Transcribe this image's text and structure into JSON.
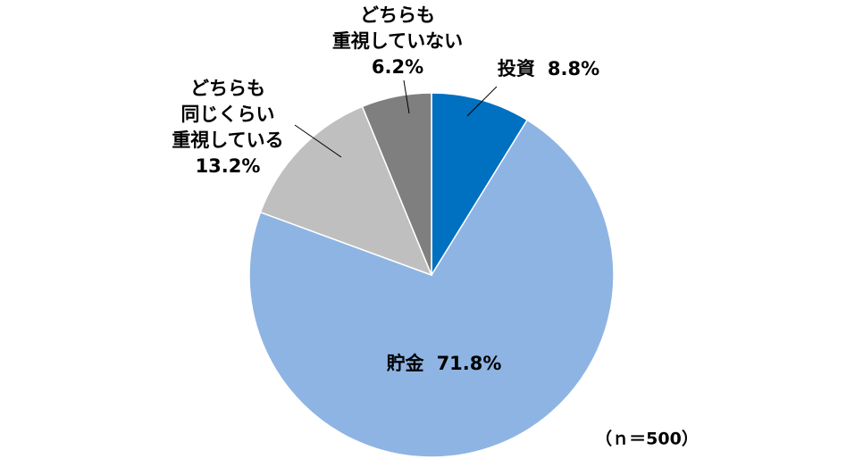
{
  "chart_data": {
    "type": "pie",
    "categories": [
      "投資",
      "貯金",
      "どちらも同じくらい重視している",
      "どちらも重視していない"
    ],
    "values": [
      8.8,
      71.8,
      13.2,
      6.2
    ],
    "value_labels": [
      "8.8%",
      "71.8%",
      "13.2%",
      "6.2%"
    ],
    "colors": [
      "#0070c0",
      "#8eb4e3",
      "#bfbfbf",
      "#7f7f7f"
    ],
    "annotation": "（ｎ＝500）"
  }
}
